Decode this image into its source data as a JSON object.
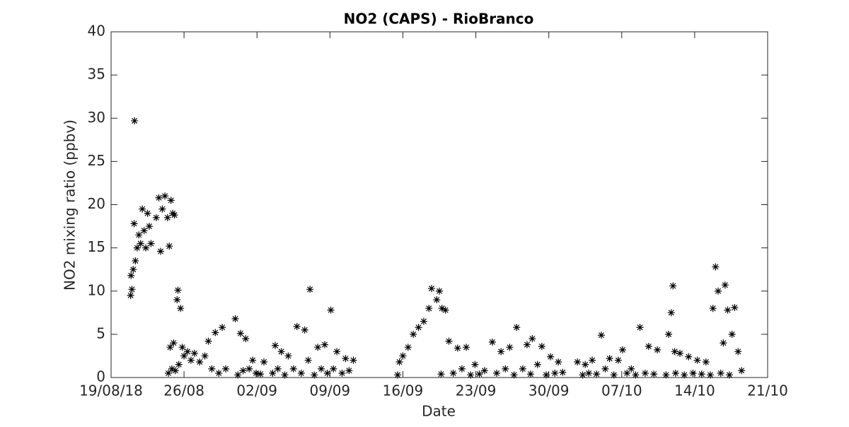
{
  "chart_data": {
    "type": "scatter",
    "title": "NO2 (CAPS) - RioBranco",
    "x_label": "Date",
    "y_label": "NO2 mixing ratio (ppbv)",
    "color": "#000000",
    "marker": "asterisk",
    "grid": false,
    "xlim": [
      "2018-08-19",
      "2018-10-21"
    ],
    "xticks": [
      {
        "value": "2018-08-19",
        "label": "19/08/18"
      },
      {
        "value": "2018-08-26",
        "label": "26/08"
      },
      {
        "value": "2018-09-02",
        "label": "02/09"
      },
      {
        "value": "2018-09-09",
        "label": "09/09"
      },
      {
        "value": "2018-09-16",
        "label": "16/09"
      },
      {
        "value": "2018-09-23",
        "label": "23/09"
      },
      {
        "value": "2018-09-30",
        "label": "30/09"
      },
      {
        "value": "2018-10-07",
        "label": "07/10"
      },
      {
        "value": "2018-10-14",
        "label": "14/10"
      },
      {
        "value": "2018-10-21",
        "label": "21/10"
      }
    ],
    "ylim": [
      0,
      40
    ],
    "yticks": [
      0,
      5,
      10,
      15,
      20,
      25,
      30,
      35,
      40
    ],
    "x": [
      "2018-08-20 21:00",
      "2018-08-20 22:00",
      "2018-08-21 00:00",
      "2018-08-21 03:00",
      "2018-08-21 05:00",
      "2018-08-21 06:00",
      "2018-08-21 08:00",
      "2018-08-21 12:00",
      "2018-08-21 16:00",
      "2018-08-21 20:00",
      "2018-08-22 00:00",
      "2018-08-22 04:00",
      "2018-08-22 08:00",
      "2018-08-22 12:00",
      "2018-08-22 16:00",
      "2018-08-22 20:00",
      "2018-08-23 08:00",
      "2018-08-23 14:00",
      "2018-08-23 18:00",
      "2018-08-23 22:00",
      "2018-08-24 04:00",
      "2018-08-24 10:00",
      "2018-08-24 14:00",
      "2018-08-24 18:00",
      "2018-08-24 22:00",
      "2018-08-25 02:00",
      "2018-08-24 12:00",
      "2018-08-24 16:00",
      "2018-08-24 20:00",
      "2018-08-25 00:00",
      "2018-08-25 04:00",
      "2018-08-25 08:00",
      "2018-08-25 10:00",
      "2018-08-25 12:00",
      "2018-08-25 16:00",
      "2018-08-25 20:00",
      "2018-08-26 00:00",
      "2018-08-26 08:00",
      "2018-08-26 16:00",
      "2018-08-27 00:00",
      "2018-08-27 12:00",
      "2018-08-28 00:00",
      "2018-08-28 08:00",
      "2018-08-28 16:00",
      "2018-08-29 00:00",
      "2018-08-29 08:00",
      "2018-08-29 16:00",
      "2018-08-30 00:00",
      "2018-08-30 22:00",
      "2018-08-31 04:00",
      "2018-08-31 10:00",
      "2018-08-31 16:00",
      "2018-08-31 22:00",
      "2018-09-01 06:00",
      "2018-09-01 14:00",
      "2018-09-01 22:00",
      "2018-09-02 08:00",
      "2018-09-02 16:00",
      "2018-09-03 12:00",
      "2018-09-03 18:00",
      "2018-09-04 00:00",
      "2018-09-04 08:00",
      "2018-09-04 16:00",
      "2018-09-05 00:00",
      "2018-09-05 12:00",
      "2018-09-05 20:00",
      "2018-09-06 06:00",
      "2018-09-06 14:00",
      "2018-09-06 22:00",
      "2018-09-07 02:00",
      "2018-09-07 12:00",
      "2018-09-07 20:00",
      "2018-09-08 04:00",
      "2018-09-08 12:00",
      "2018-09-08 18:00",
      "2018-09-09 02:00",
      "2018-09-09 08:00",
      "2018-09-09 16:00",
      "2018-09-10 04:00",
      "2018-09-10 12:00",
      "2018-09-10 20:00",
      "2018-09-11 06:00",
      "2018-09-15 12:00",
      "2018-09-15 16:00",
      "2018-09-16 00:00",
      "2018-09-16 12:00",
      "2018-09-17 00:00",
      "2018-09-17 12:00",
      "2018-09-18 00:00",
      "2018-09-18 12:00",
      "2018-09-18 18:00",
      "2018-09-19 06:00",
      "2018-09-19 12:00",
      "2018-09-19 18:00",
      "2018-09-20 02:00",
      "2018-09-19 16:00",
      "2018-09-20 10:00",
      "2018-09-20 20:00",
      "2018-09-21 06:00",
      "2018-09-21 16:00",
      "2018-09-22 02:00",
      "2018-09-22 12:00",
      "2018-09-22 22:00",
      "2018-09-23 08:00",
      "2018-09-23 20:00",
      "2018-09-24 14:00",
      "2018-09-25 00:00",
      "2018-09-25 10:00",
      "2018-09-25 20:00",
      "2018-09-26 06:00",
      "2018-09-26 16:00",
      "2018-09-26 22:00",
      "2018-09-27 12:00",
      "2018-09-27 22:00",
      "2018-09-28 06:00",
      "2018-09-28 10:00",
      "2018-09-28 22:00",
      "2018-09-29 08:00",
      "2018-09-29 18:00",
      "2018-09-30 04:00",
      "2018-09-30 14:00",
      "2018-09-30 22:00",
      "2018-10-01 08:00",
      "2018-10-02 18:00",
      "2018-10-03 06:00",
      "2018-10-03 12:00",
      "2018-10-03 20:00",
      "2018-10-04 04:00",
      "2018-10-04 14:00",
      "2018-10-05 01:00",
      "2018-10-05 10:00",
      "2018-10-05 20:00",
      "2018-10-06 06:00",
      "2018-10-06 16:00",
      "2018-10-07 02:00",
      "2018-10-07 12:00",
      "2018-10-07 22:00",
      "2018-10-08 08:00",
      "2018-10-08 18:00",
      "2018-10-09 06:00",
      "2018-10-09 14:00",
      "2018-10-10 02:00",
      "2018-10-10 10:00",
      "2018-10-11 06:00",
      "2018-10-11 12:00",
      "2018-10-11 18:00",
      "2018-10-11 22:00",
      "2018-10-12 02:00",
      "2018-10-12 04:00",
      "2018-10-12 14:00",
      "2018-10-13 00:00",
      "2018-10-13 10:00",
      "2018-10-13 20:00",
      "2018-10-14 06:00",
      "2018-10-14 16:00",
      "2018-10-15 02:00",
      "2018-10-15 12:00",
      "2018-10-15 18:00",
      "2018-10-16 00:00",
      "2018-10-16 06:00",
      "2018-10-16 12:00",
      "2018-10-16 18:00",
      "2018-10-16 22:00",
      "2018-10-17 04:00",
      "2018-10-17 08:00",
      "2018-10-17 14:00",
      "2018-10-17 20:00",
      "2018-10-18 04:00",
      "2018-10-18 12:00"
    ],
    "values": [
      9.5,
      11.8,
      10.2,
      12.5,
      17.8,
      29.7,
      13.5,
      15,
      16.5,
      15.5,
      19.5,
      17,
      15,
      19,
      17.5,
      15.5,
      18.5,
      20.8,
      14.6,
      19.5,
      21,
      18.5,
      15.2,
      20.5,
      19,
      18.8,
      0.5,
      3.5,
      1,
      4,
      0.8,
      9,
      10.1,
      1.5,
      8,
      3.5,
      2.5,
      3,
      2,
      2.8,
      1.8,
      2.5,
      4.2,
      1,
      5.2,
      0.5,
      5.8,
      1,
      6.8,
      0.3,
      5.1,
      0.8,
      4.5,
      1,
      2,
      0.5,
      0.4,
      1.8,
      0.5,
      3.7,
      1,
      3,
      0.3,
      2.5,
      1,
      5.9,
      0.5,
      5.5,
      2,
      10.2,
      0.3,
      3.5,
      1,
      3.8,
      0.5,
      7.8,
      1,
      3,
      0.5,
      2.2,
      0.8,
      2,
      0.3,
      1.8,
      2.5,
      3.5,
      5,
      5.8,
      6.5,
      8,
      10.3,
      9,
      10,
      8,
      7.8,
      0.4,
      4.2,
      0.5,
      3.4,
      1,
      3.5,
      0.3,
      1.5,
      0.4,
      0.8,
      4.1,
      0.5,
      3,
      1,
      3.5,
      0.3,
      5.8,
      1,
      3.8,
      0.4,
      4.5,
      1.5,
      3.6,
      0.3,
      2.4,
      0.5,
      1.8,
      0.6,
      1.8,
      0.3,
      1.5,
      0.5,
      2,
      0.4,
      4.9,
      1,
      2.2,
      0.3,
      2,
      3.2,
      0.5,
      1,
      0.3,
      5.8,
      0.5,
      3.6,
      0.4,
      3.2,
      0.3,
      5,
      7.5,
      10.6,
      3,
      0.5,
      2.8,
      0.3,
      2.4,
      0.5,
      2,
      0.4,
      1.8,
      0.3,
      8,
      12.8,
      10,
      0.5,
      4,
      10.7,
      7.8,
      0.3,
      5,
      8.1,
      3,
      0.8
    ]
  }
}
